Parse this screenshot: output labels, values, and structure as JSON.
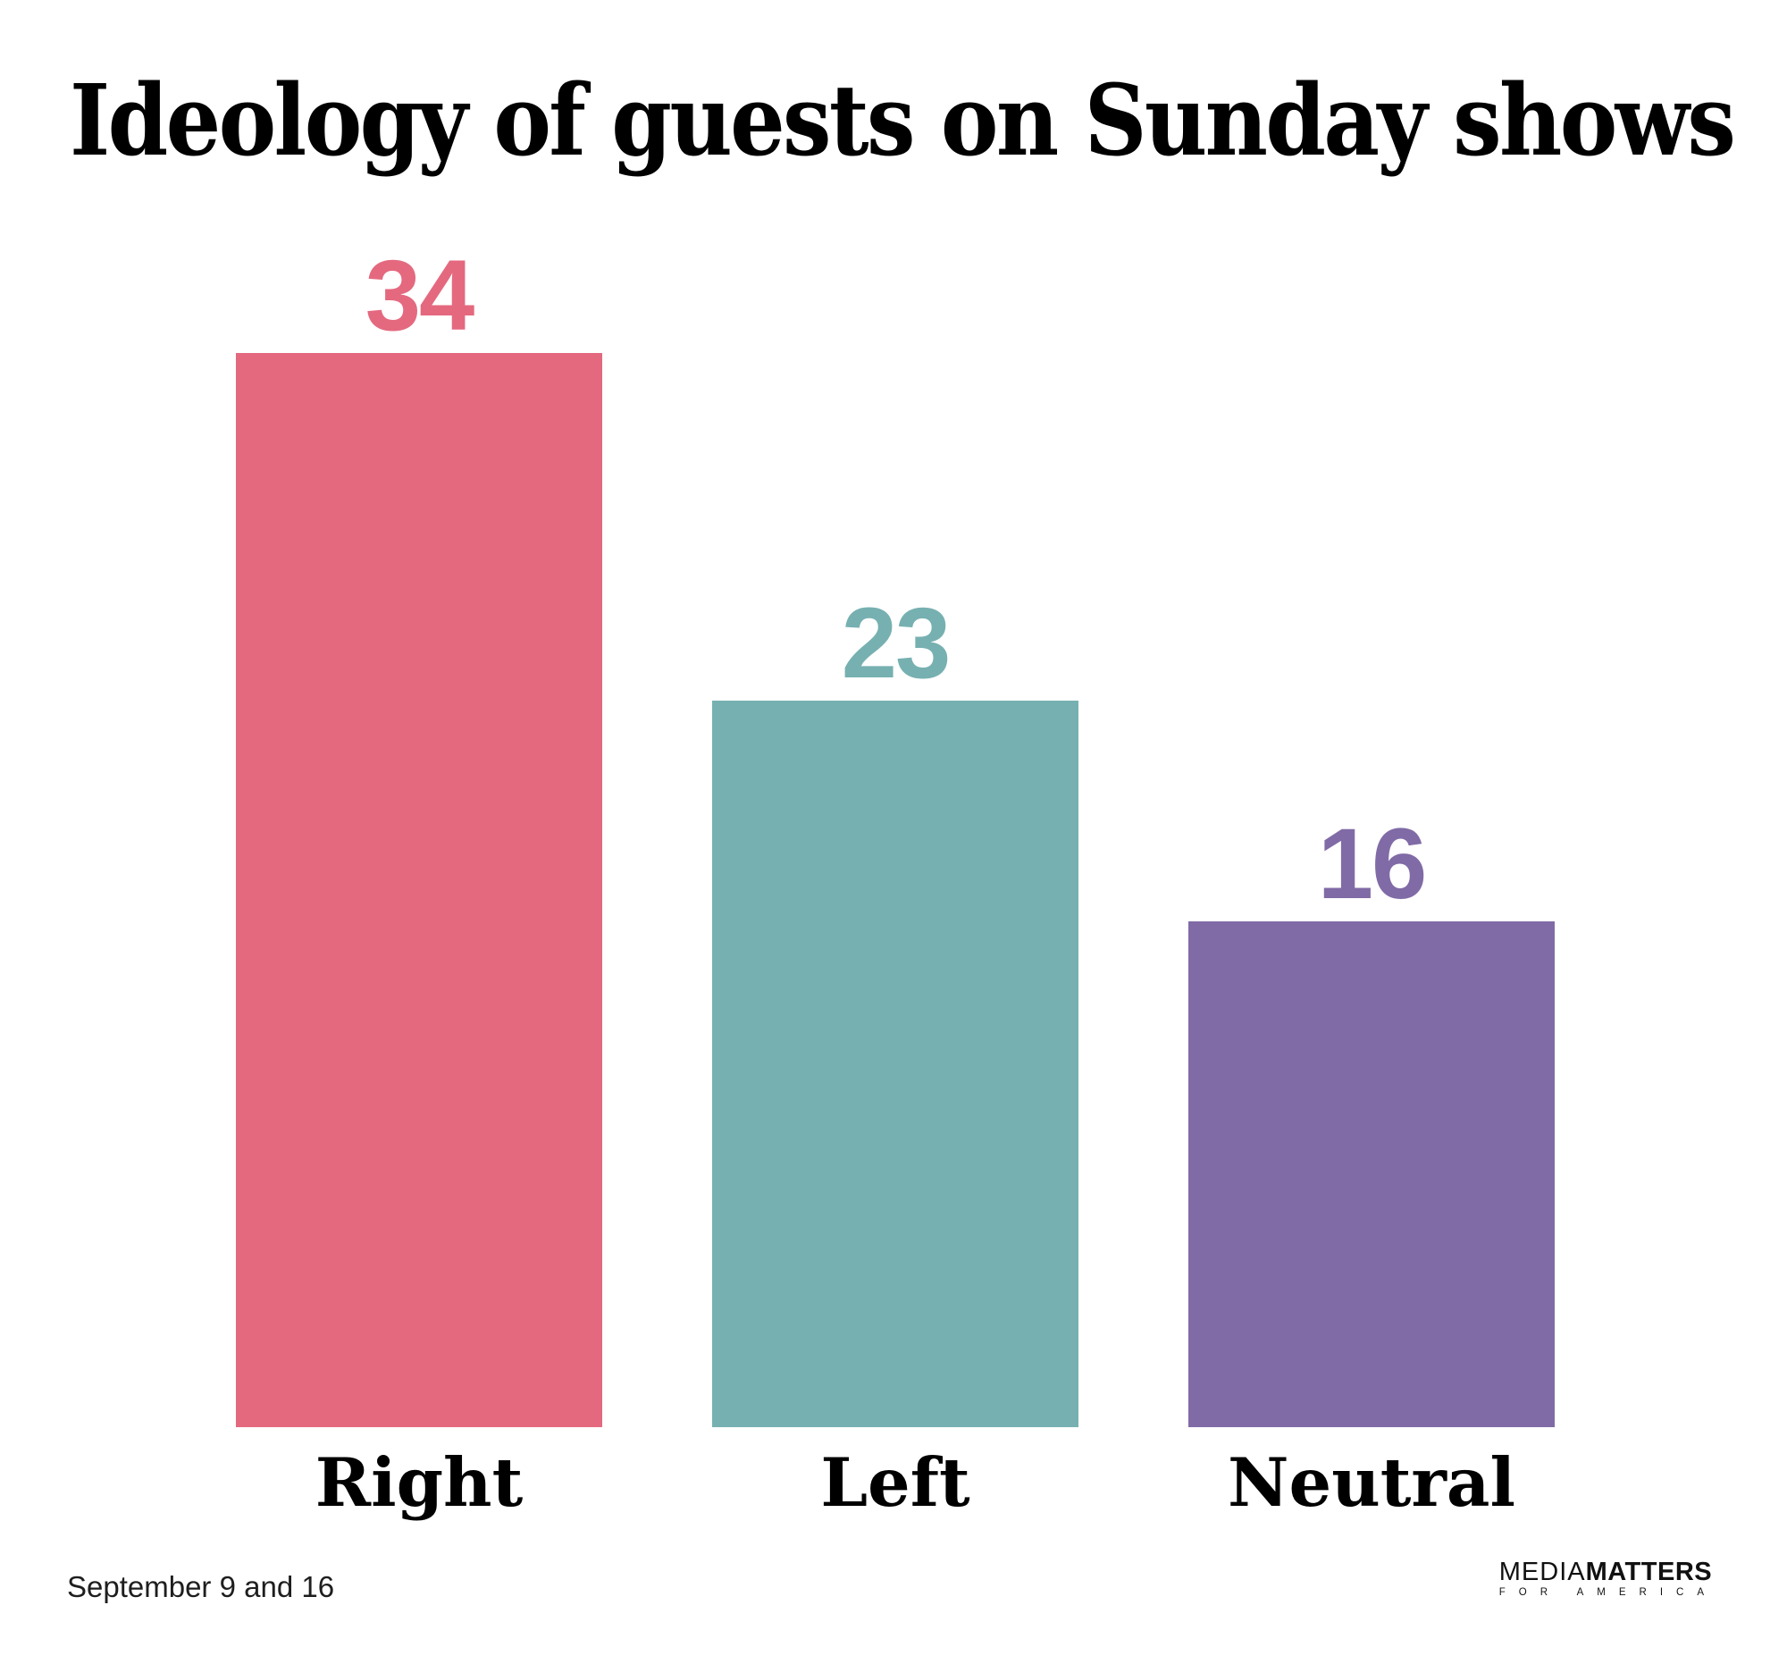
{
  "chart_data": {
    "type": "bar",
    "title": "Ideology of guests on Sunday shows",
    "categories": [
      "Right",
      "Left",
      "Neutral"
    ],
    "values": [
      34,
      23,
      16
    ],
    "bar_colors": [
      "#e4697f",
      "#77b0b1",
      "#806ba6"
    ],
    "value_labels_shown": true,
    "gridlines": false,
    "legend": false,
    "axes_visible": false,
    "background_color": "#ffffff",
    "text_color": "#000000",
    "footnote": "September 9 and 16"
  },
  "branding": {
    "logo_media": "MEDIA",
    "logo_matters": "MATTERS",
    "logo_tagline": "FOR AMERICA"
  }
}
